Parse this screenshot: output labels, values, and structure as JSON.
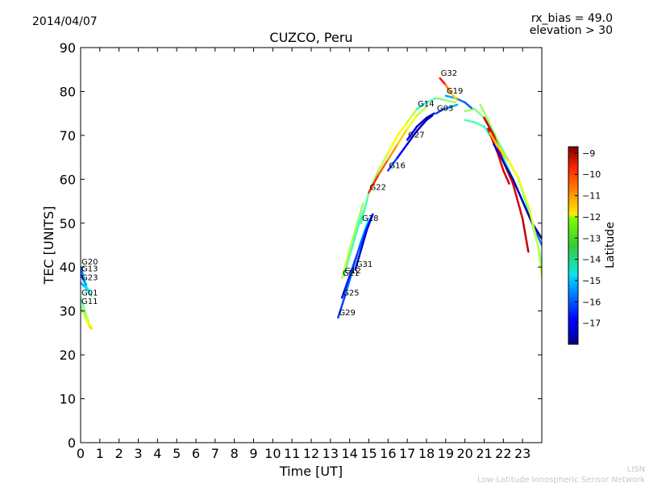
{
  "header": {
    "date": "2014/04/07",
    "rx_bias": "rx_bias = 49.0",
    "elevation": "elevation > 30"
  },
  "footer": {
    "line1": "LISN",
    "line2": "Low-Latitude Ionospheric Sensor Network"
  },
  "chart_data": {
    "type": "scatter",
    "title": "CUZCO, Peru",
    "xlabel": "Time [UT]",
    "ylabel": "TEC [UNITS]",
    "xlim": [
      0,
      24
    ],
    "ylim": [
      0,
      90
    ],
    "xticks": [
      "0",
      "1",
      "2",
      "3",
      "4",
      "5",
      "6",
      "7",
      "8",
      "9",
      "10",
      "11",
      "12",
      "13",
      "14",
      "15",
      "16",
      "17",
      "18",
      "19",
      "20",
      "21",
      "22",
      "23"
    ],
    "yticks": [
      "0",
      "10",
      "20",
      "30",
      "40",
      "50",
      "60",
      "70",
      "80",
      "90"
    ],
    "colorbar": {
      "label": "Latitude",
      "min": -18,
      "max": -8.7,
      "ticks": [
        "-9",
        "-10",
        "-11",
        "-12",
        "-13",
        "-14",
        "-15",
        "-16",
        "-17"
      ],
      "colormap": "jet"
    },
    "series": [
      {
        "name": "G20",
        "points": [
          [
            0.0,
            40.0,
            -16.5
          ],
          [
            0.1,
            38.5,
            -15.5
          ],
          [
            0.2,
            37.0,
            -15.0
          ],
          [
            0.3,
            36.0,
            -14.5
          ]
        ]
      },
      {
        "name": "G13",
        "points": [
          [
            0.0,
            38.5,
            -16.8
          ],
          [
            0.15,
            37.0,
            -15.8
          ],
          [
            0.3,
            35.5,
            -15.0
          ],
          [
            0.45,
            34.5,
            -14.2
          ]
        ]
      },
      {
        "name": "G23",
        "points": [
          [
            0.0,
            36.5,
            -15.5
          ],
          [
            0.2,
            35.5,
            -15.0
          ],
          [
            0.4,
            34.5,
            -14.5
          ],
          [
            0.55,
            33.5,
            -14.0
          ]
        ]
      },
      {
        "name": "G01",
        "points": [
          [
            0.0,
            33.0,
            -14.0
          ],
          [
            0.15,
            31.0,
            -13.5
          ],
          [
            0.3,
            29.0,
            -13.0
          ],
          [
            0.45,
            27.0,
            -12.5
          ],
          [
            0.6,
            26.0,
            -12.0
          ]
        ]
      },
      {
        "name": "G11",
        "points": [
          [
            0.0,
            31.0,
            -13.5
          ],
          [
            0.15,
            29.5,
            -13.0
          ],
          [
            0.3,
            28.0,
            -12.5
          ],
          [
            0.45,
            26.5,
            -12.0
          ],
          [
            0.55,
            26.0,
            -11.8
          ]
        ]
      },
      {
        "name": "G29",
        "points": [
          [
            13.4,
            28.5,
            -16.5
          ],
          [
            13.8,
            34.0,
            -16.0
          ],
          [
            14.2,
            40.0,
            -15.5
          ],
          [
            14.6,
            46.0,
            -15.0
          ],
          [
            15.0,
            51.0,
            -14.5
          ]
        ]
      },
      {
        "name": "G25",
        "points": [
          [
            13.6,
            33.0,
            -16.8
          ],
          [
            14.0,
            38.0,
            -16.5
          ],
          [
            14.4,
            43.0,
            -16.2
          ],
          [
            14.8,
            48.0,
            -16.0
          ],
          [
            15.2,
            52.0,
            -16.5
          ]
        ]
      },
      {
        "name": "G21",
        "points": [
          [
            13.6,
            37.5,
            -12.5
          ],
          [
            14.0,
            44.0,
            -12.8
          ],
          [
            14.4,
            50.0,
            -13.0
          ],
          [
            14.7,
            54.5,
            -13.2
          ]
        ]
      },
      {
        "name": "G12",
        "points": [
          [
            13.7,
            38.0,
            -13.5
          ],
          [
            14.1,
            44.0,
            -13.8
          ],
          [
            14.5,
            50.0,
            -14.0
          ],
          [
            14.9,
            55.0,
            -14.2
          ]
        ]
      },
      {
        "name": "G31",
        "points": [
          [
            14.3,
            39.5,
            -17.5
          ],
          [
            14.6,
            44.0,
            -17.3
          ],
          [
            14.9,
            48.5,
            -17.0
          ],
          [
            15.2,
            52.0,
            -16.8
          ]
        ]
      },
      {
        "name": "G18",
        "points": [
          [
            14.6,
            50.0,
            -14.0
          ],
          [
            15.0,
            57.0,
            -13.5
          ],
          [
            15.5,
            62.0,
            -13.0
          ],
          [
            16.0,
            66.0,
            -12.5
          ],
          [
            16.5,
            70.0,
            -12.0
          ],
          [
            17.0,
            73.0,
            -12.5
          ],
          [
            17.5,
            76.0,
            -13.0
          ],
          [
            18.0,
            77.5,
            -13.5
          ]
        ]
      },
      {
        "name": "G22",
        "points": [
          [
            15.0,
            57.0,
            -10.0
          ],
          [
            15.5,
            61.0,
            -10.5
          ],
          [
            16.0,
            64.5,
            -11.0
          ],
          [
            16.5,
            68.0,
            -11.5
          ],
          [
            17.0,
            71.5,
            -12.0
          ],
          [
            17.5,
            74.5,
            -12.5
          ],
          [
            18.0,
            76.5,
            -13.0
          ]
        ]
      },
      {
        "name": "G16",
        "points": [
          [
            16.0,
            62.0,
            -16.0
          ],
          [
            16.5,
            65.0,
            -16.5
          ],
          [
            17.0,
            68.0,
            -17.0
          ],
          [
            17.5,
            71.0,
            -17.3
          ],
          [
            18.0,
            73.5,
            -17.5
          ],
          [
            18.3,
            74.5,
            -17.5
          ]
        ]
      },
      {
        "name": "G27",
        "points": [
          [
            17.0,
            69.0,
            -17.0
          ],
          [
            17.5,
            72.0,
            -17.2
          ],
          [
            18.0,
            74.0,
            -17.5
          ],
          [
            18.4,
            75.0,
            -17.7
          ]
        ]
      },
      {
        "name": "G03",
        "points": [
          [
            18.5,
            75.0,
            -16.5
          ],
          [
            18.9,
            76.0,
            -16.0
          ],
          [
            19.3,
            76.5,
            -15.5
          ],
          [
            19.6,
            77.0,
            -15.0
          ]
        ]
      },
      {
        "name": "G14",
        "points": [
          [
            17.5,
            76.0,
            -14.5
          ],
          [
            18.0,
            77.5,
            -14.0
          ],
          [
            18.5,
            78.5,
            -13.5
          ],
          [
            19.0,
            78.0,
            -13.2
          ],
          [
            19.5,
            77.5,
            -13.0
          ]
        ]
      },
      {
        "name": "G19",
        "points": [
          [
            19.0,
            79.0,
            -15.0
          ],
          [
            19.5,
            78.5,
            -15.5
          ],
          [
            20.0,
            77.5,
            -16.0
          ],
          [
            20.4,
            76.0,
            -16.0
          ]
        ]
      },
      {
        "name": "G32",
        "points": [
          [
            18.7,
            83.0,
            -9.5
          ],
          [
            19.0,
            81.5,
            -10.5
          ],
          [
            19.3,
            79.5,
            -11.5
          ],
          [
            19.6,
            78.0,
            -12.0
          ]
        ]
      },
      {
        "name": "",
        "points": [
          [
            20.0,
            73.5,
            -14.0
          ],
          [
            20.5,
            73.0,
            -13.5
          ],
          [
            21.0,
            72.0,
            -14.0
          ],
          [
            21.3,
            70.0,
            -14.5
          ]
        ]
      },
      {
        "name": "",
        "points": [
          [
            20.0,
            75.5,
            -13.0
          ],
          [
            20.5,
            76.0,
            -13.2
          ],
          [
            21.0,
            74.0,
            -13.5
          ],
          [
            21.5,
            70.0,
            -13.8
          ],
          [
            22.0,
            65.0,
            -14.0
          ],
          [
            22.5,
            60.0,
            -14.5
          ],
          [
            23.0,
            55.0,
            -15.0
          ],
          [
            23.5,
            50.0,
            -15.5
          ],
          [
            24.0,
            45.0,
            -16.0
          ]
        ]
      },
      {
        "name": "",
        "points": [
          [
            20.8,
            77.0,
            -13.0
          ],
          [
            21.3,
            72.5,
            -13.2
          ],
          [
            21.8,
            68.0,
            -13.4
          ],
          [
            22.3,
            64.0,
            -13.6
          ],
          [
            22.8,
            60.0,
            -13.8
          ],
          [
            23.3,
            53.0,
            -14.0
          ],
          [
            23.8,
            45.0,
            -14.2
          ],
          [
            24.0,
            40.0,
            -14.5
          ]
        ]
      },
      {
        "name": "",
        "points": [
          [
            21.0,
            74.0,
            -9.3
          ],
          [
            21.5,
            70.0,
            -9.5
          ],
          [
            22.0,
            64.0,
            -9.6
          ],
          [
            22.5,
            59.0,
            -9.7
          ],
          [
            23.0,
            51.0,
            -9.4
          ],
          [
            23.3,
            43.5,
            -9.2
          ]
        ]
      },
      {
        "name": "",
        "points": [
          [
            21.2,
            71.5,
            -9.8
          ],
          [
            21.7,
            66.0,
            -9.7
          ],
          [
            22.0,
            62.0,
            -9.5
          ],
          [
            22.3,
            59.0,
            -9.4
          ]
        ]
      },
      {
        "name": "",
        "points": [
          [
            21.5,
            68.0,
            -17.2
          ],
          [
            22.0,
            64.0,
            -17.3
          ],
          [
            22.5,
            60.0,
            -17.5
          ],
          [
            23.0,
            55.0,
            -17.6
          ],
          [
            23.5,
            50.0,
            -17.8
          ],
          [
            24.0,
            46.5,
            -17.8
          ]
        ]
      },
      {
        "name": "",
        "points": [
          [
            21.3,
            70.5,
            -11.5
          ],
          [
            21.8,
            67.0,
            -11.8
          ],
          [
            22.3,
            64.0,
            -12.0
          ],
          [
            22.8,
            60.0,
            -12.3
          ],
          [
            23.3,
            54.0,
            -12.5
          ],
          [
            23.8,
            45.0,
            -12.7
          ],
          [
            24.0,
            38.0,
            -12.8
          ]
        ]
      }
    ]
  }
}
